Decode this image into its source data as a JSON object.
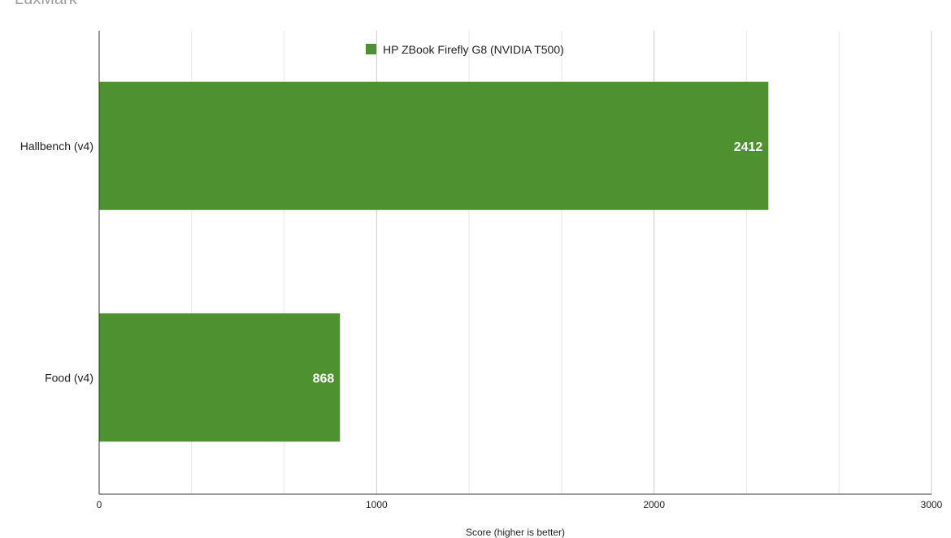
{
  "chart_data": {
    "type": "bar",
    "orientation": "horizontal",
    "title": "LuxMark",
    "categories": [
      "Hallbench (v4)",
      "Food (v4)"
    ],
    "series": [
      {
        "name": "HP ZBook Firefly G8 (NVIDIA T500)",
        "values": [
          2412,
          868
        ],
        "color": "#4e9130"
      }
    ],
    "xlabel": "Score (higher is better)",
    "ylabel": "",
    "xlim": [
      0,
      3000
    ],
    "xticks": [
      0,
      1000,
      2000,
      3000
    ],
    "grid": true,
    "legend_position": "top-center"
  }
}
